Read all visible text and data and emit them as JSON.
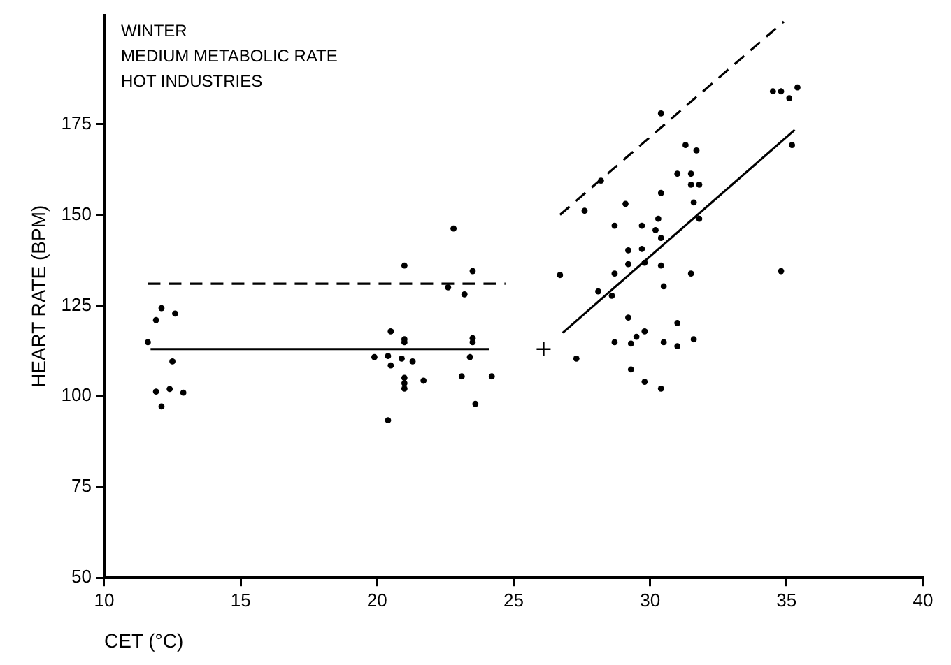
{
  "chart_data": {
    "type": "scatter",
    "xlabel": "CET (°C)",
    "ylabel": "HEART RATE (BPM)",
    "annotations": [
      "WINTER",
      "MEDIUM METABOLIC RATE",
      "HOT INDUSTRIES"
    ],
    "xlim": [
      10,
      40
    ],
    "xticks": [
      10,
      15,
      20,
      25,
      30,
      35,
      40
    ],
    "ylim": [
      50,
      205
    ],
    "yticks": [
      50,
      75,
      100,
      125,
      150,
      175
    ],
    "grid": false,
    "legend": false,
    "series": [
      {
        "type": "scatter",
        "marker": "circle",
        "color": "#000000",
        "x": [
          11.6,
          11.9,
          12.1,
          12.6,
          12.5,
          11.9,
          12.4,
          12.9,
          12.1,
          22.8,
          21.0,
          23.5,
          26.7,
          22.6,
          23.2,
          20.5,
          21.0,
          21.0,
          23.5,
          23.5,
          19.9,
          20.4,
          20.5,
          20.9,
          21.3,
          21.7,
          21.0,
          21.0,
          21.0,
          23.1,
          23.4,
          24.2,
          23.6,
          20.4,
          27.3,
          30.4,
          28.2,
          27.6,
          29.1,
          31.3,
          31.7,
          34.5,
          34.8,
          35.1,
          35.4,
          35.2,
          31.0,
          31.5,
          31.5,
          31.8,
          30.4,
          31.6,
          28.7,
          29.7,
          30.3,
          30.2,
          30.4,
          31.8,
          29.2,
          29.7,
          29.2,
          29.8,
          30.4,
          28.7,
          31.5,
          28.1,
          28.6,
          30.5,
          29.2,
          31.0,
          29.8,
          34.8,
          28.7,
          29.3,
          29.5,
          30.5,
          31.0,
          31.6,
          29.3,
          29.8,
          30.4
        ],
        "values": [
          114.9,
          121,
          124.3,
          122.8,
          109.6,
          101.3,
          102,
          101,
          97.2,
          146.2,
          136,
          134.5,
          133.4,
          130,
          128.1,
          117.9,
          115.7,
          114.9,
          116,
          114.9,
          110.8,
          111.1,
          108.5,
          110.4,
          109.6,
          104.3,
          105.1,
          103.6,
          102.1,
          105.5,
          110.8,
          105.5,
          97.9,
          93.4,
          110.4,
          177.9,
          159.4,
          151.1,
          153,
          169.2,
          167.7,
          184,
          184,
          182.1,
          185.1,
          169.2,
          161.3,
          161.3,
          158.3,
          158.3,
          156,
          153.4,
          147,
          147,
          148.9,
          145.8,
          143.6,
          148.9,
          140.2,
          140.6,
          136.4,
          136.8,
          136,
          133.8,
          133.8,
          128.9,
          127.7,
          130.3,
          121.7,
          120.2,
          117.9,
          134.5,
          114.9,
          114.5,
          116.4,
          114.9,
          113.8,
          115.7,
          107.4,
          104,
          102.1
        ]
      },
      {
        "type": "scatter",
        "marker": "cross",
        "color": "#000000",
        "x": [
          26.1
        ],
        "values": [
          113
        ]
      },
      {
        "type": "line",
        "line_style": "solid",
        "color": "#000000",
        "x": [
          11.7,
          24.1
        ],
        "values": [
          113,
          113
        ]
      },
      {
        "type": "line",
        "line_style": "dashed",
        "color": "#000000",
        "x": [
          11.6,
          24.7
        ],
        "values": [
          131,
          131
        ]
      },
      {
        "type": "line",
        "line_style": "solid",
        "color": "#000000",
        "x": [
          26.8,
          35.3
        ],
        "values": [
          117.5,
          173.4
        ]
      },
      {
        "type": "line",
        "line_style": "dashed",
        "color": "#000000",
        "x": [
          26.7,
          34.9
        ],
        "values": [
          150,
          203.2
        ]
      }
    ]
  }
}
